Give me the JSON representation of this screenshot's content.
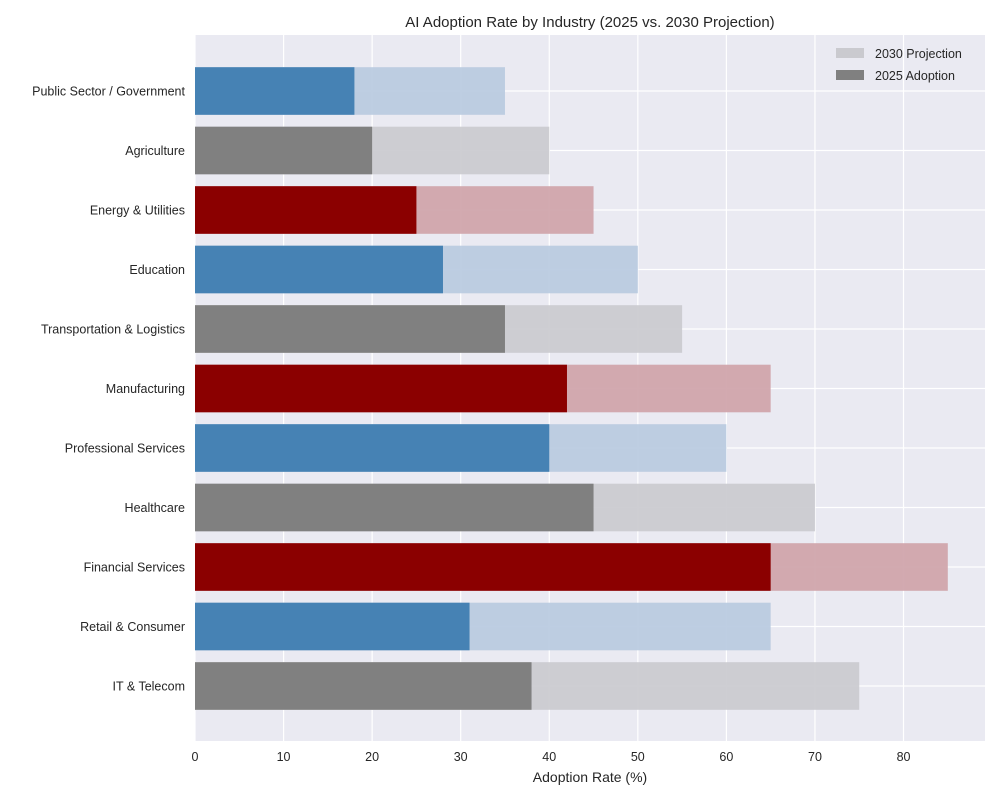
{
  "chart_data": {
    "type": "bar",
    "orientation": "horizontal",
    "title": "AI Adoption Rate by Industry (2025 vs. 2030 Projection)",
    "xlabel": "Adoption Rate (%)",
    "ylabel": "",
    "xlim": [
      0,
      89.2
    ],
    "xticks": [
      0,
      10,
      20,
      30,
      40,
      50,
      60,
      70,
      80
    ],
    "grid": true,
    "legend_position": "top-right",
    "categories": [
      "Public Sector / Government",
      "Agriculture",
      "Energy & Utilities",
      "Education",
      "Transportation & Logistics",
      "Manufacturing",
      "Professional Services",
      "Healthcare",
      "Financial Services",
      "Retail & Consumer",
      "IT & Telecom"
    ],
    "series": [
      {
        "name": "2030 Projection",
        "values": [
          35,
          40,
          45,
          50,
          55,
          65,
          60,
          70,
          85,
          65,
          75
        ],
        "legend_color": "#cacacf",
        "style": "light"
      },
      {
        "name": "2025 Adoption",
        "values": [
          18,
          20,
          25,
          28,
          35,
          42,
          40,
          45,
          65,
          31,
          38
        ],
        "legend_color": "#808080",
        "style": "solid"
      }
    ],
    "bar_colors": [
      "#4682b4",
      "#808080",
      "#8b0000",
      "#4682b4",
      "#808080",
      "#8b0000",
      "#4682b4",
      "#808080",
      "#8b0000",
      "#4682b4",
      "#808080"
    ],
    "bar_colors_light": [
      "#b8cae0",
      "#cacacf",
      "#cfa3a9",
      "#b8cae0",
      "#cacacf",
      "#cfa3a9",
      "#b8cae0",
      "#cacacf",
      "#cfa3a9",
      "#b8cae0",
      "#cacacf"
    ],
    "background_color": "#eaeaf2",
    "grid_color": "#ffffff"
  }
}
